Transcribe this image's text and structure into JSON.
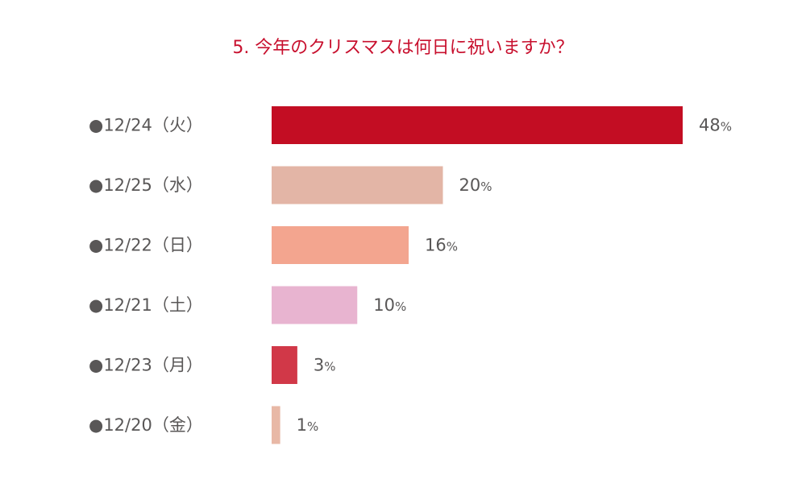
{
  "chart_data": {
    "type": "bar",
    "orientation": "horizontal",
    "title": "5. 今年のクリスマスは何日に祝いますか？",
    "categories": [
      "●12/24（火）",
      "●12/25（水）",
      "●12/22（日）",
      "●12/21（土）",
      "●12/23（月）",
      "●12/20（金）"
    ],
    "values": [
      48,
      20,
      16,
      10,
      3,
      1
    ],
    "value_labels": [
      "48",
      "20",
      "16",
      "10",
      "3",
      "1"
    ],
    "value_unit": "%",
    "bar_colors": [
      "#c30d23",
      "#e3b5a6",
      "#f3a58f",
      "#e8b4d0",
      "#d13848",
      "#e8b8a6"
    ],
    "title_color": "#c8102e",
    "text_color": "#595757",
    "xlim": [
      0,
      48
    ],
    "grid": false,
    "legend": "none"
  }
}
